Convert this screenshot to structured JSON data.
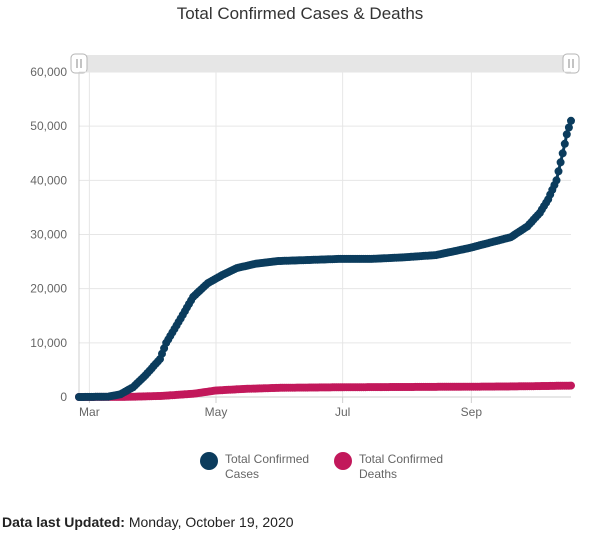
{
  "chart_data": {
    "type": "line",
    "title": "Total Confirmed Cases & Deaths",
    "x_axis": {
      "tick_labels": [
        "Mar",
        "May",
        "Jul",
        "Sep"
      ],
      "range": [
        "2020-02-25",
        "2020-10-19"
      ]
    },
    "y_axis": {
      "tick_labels": [
        "0",
        "10,000",
        "20,000",
        "30,000",
        "40,000",
        "50,000",
        "60,000"
      ],
      "range": [
        0,
        60000
      ]
    },
    "grid": true,
    "legend_position": "bottom",
    "range_navigator": true,
    "series": [
      {
        "name": "Total Confirmed Cases",
        "color": "#0b3c5d",
        "points": [
          [
            "2020-02-25",
            0
          ],
          [
            "2020-03-10",
            50
          ],
          [
            "2020-03-16",
            500
          ],
          [
            "2020-03-22",
            1800
          ],
          [
            "2020-03-28",
            4000
          ],
          [
            "2020-04-04",
            7000
          ],
          [
            "2020-04-07",
            10000
          ],
          [
            "2020-04-14",
            14500
          ],
          [
            "2020-04-20",
            18500
          ],
          [
            "2020-04-27",
            21000
          ],
          [
            "2020-05-04",
            22500
          ],
          [
            "2020-05-11",
            23800
          ],
          [
            "2020-05-20",
            24600
          ],
          [
            "2020-05-31",
            25100
          ],
          [
            "2020-06-15",
            25300
          ],
          [
            "2020-06-30",
            25500
          ],
          [
            "2020-07-15",
            25500
          ],
          [
            "2020-07-31",
            25800
          ],
          [
            "2020-08-15",
            26200
          ],
          [
            "2020-08-31",
            27500
          ],
          [
            "2020-09-10",
            28500
          ],
          [
            "2020-09-20",
            29500
          ],
          [
            "2020-09-28",
            31500
          ],
          [
            "2020-10-04",
            34000
          ],
          [
            "2020-10-08",
            36500
          ],
          [
            "2020-10-12",
            40000
          ],
          [
            "2020-10-15",
            45000
          ],
          [
            "2020-10-17",
            48500
          ],
          [
            "2020-10-19",
            51000
          ]
        ]
      },
      {
        "name": "Total Confirmed Deaths",
        "color": "#c2185b",
        "points": [
          [
            "2020-02-25",
            0
          ],
          [
            "2020-03-20",
            30
          ],
          [
            "2020-04-05",
            200
          ],
          [
            "2020-04-20",
            600
          ],
          [
            "2020-05-01",
            1200
          ],
          [
            "2020-05-15",
            1500
          ],
          [
            "2020-06-01",
            1700
          ],
          [
            "2020-07-01",
            1800
          ],
          [
            "2020-08-01",
            1850
          ],
          [
            "2020-09-01",
            1900
          ],
          [
            "2020-09-20",
            1950
          ],
          [
            "2020-10-01",
            2000
          ],
          [
            "2020-10-19",
            2100
          ]
        ]
      }
    ]
  },
  "legend": [
    {
      "label": "Total Confirmed Cases",
      "color": "#0b3c5d"
    },
    {
      "label": "Total Confirmed Deaths",
      "color": "#c2185b"
    }
  ],
  "footer": {
    "label": "Data last Updated:",
    "value": "Monday, October 19, 2020"
  }
}
